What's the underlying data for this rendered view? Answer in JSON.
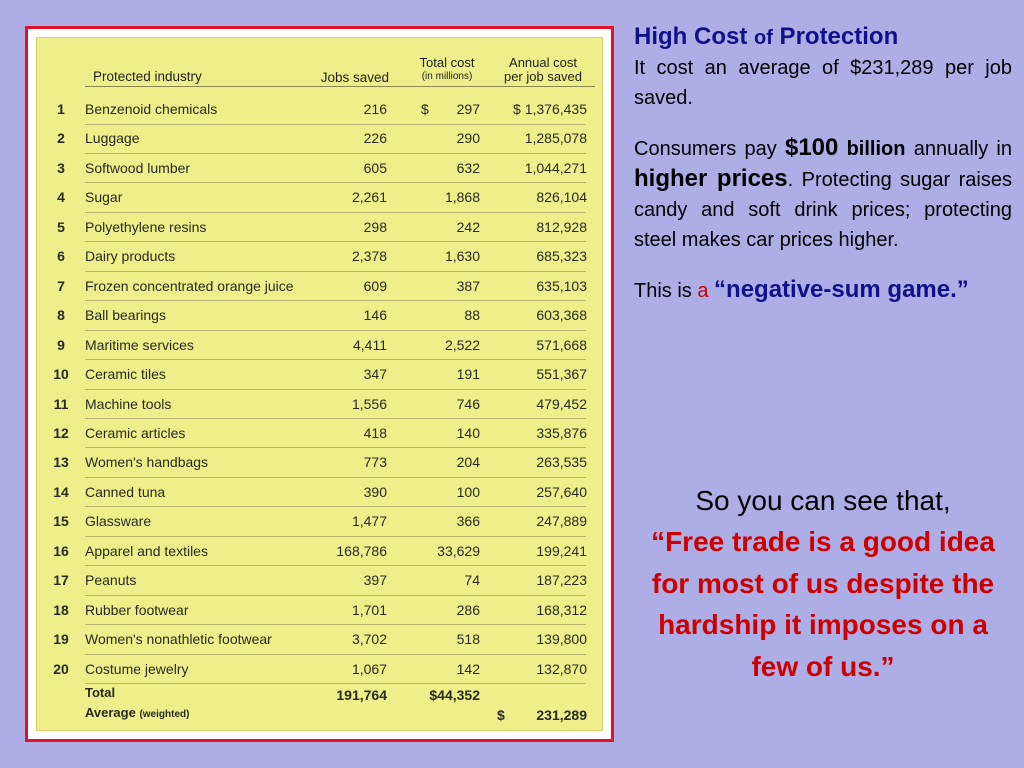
{
  "table": {
    "headers": {
      "industry": "Protected industry",
      "jobs": "Jobs saved",
      "total_cost_line1": "Total cost",
      "total_cost_line2": "(in millions)",
      "annual_cost_line1": "Annual cost",
      "annual_cost_line2": "per job saved"
    },
    "rows": [
      {
        "num": "1",
        "industry": "Benzenoid chemicals",
        "jobs": "216",
        "currency": "$",
        "total": "297",
        "annual": "$ 1,376,435"
      },
      {
        "num": "2",
        "industry": "Luggage",
        "jobs": "226",
        "currency": "",
        "total": "290",
        "annual": "1,285,078"
      },
      {
        "num": "3",
        "industry": "Softwood lumber",
        "jobs": "605",
        "currency": "",
        "total": "632",
        "annual": "1,044,271"
      },
      {
        "num": "4",
        "industry": "Sugar",
        "jobs": "2,261",
        "currency": "",
        "total": "1,868",
        "annual": "826,104"
      },
      {
        "num": "5",
        "industry": "Polyethylene resins",
        "jobs": "298",
        "currency": "",
        "total": "242",
        "annual": "812,928"
      },
      {
        "num": "6",
        "industry": "Dairy products",
        "jobs": "2,378",
        "currency": "",
        "total": "1,630",
        "annual": "685,323"
      },
      {
        "num": "7",
        "industry": "Frozen concentrated orange juice",
        "jobs": "609",
        "currency": "",
        "total": "387",
        "annual": "635,103"
      },
      {
        "num": "8",
        "industry": "Ball bearings",
        "jobs": "146",
        "currency": "",
        "total": "88",
        "annual": "603,368"
      },
      {
        "num": "9",
        "industry": "Maritime services",
        "jobs": "4,411",
        "currency": "",
        "total": "2,522",
        "annual": "571,668"
      },
      {
        "num": "10",
        "industry": "Ceramic tiles",
        "jobs": "347",
        "currency": "",
        "total": "191",
        "annual": "551,367"
      },
      {
        "num": "11",
        "industry": "Machine tools",
        "jobs": "1,556",
        "currency": "",
        "total": "746",
        "annual": "479,452"
      },
      {
        "num": "12",
        "industry": "Ceramic articles",
        "jobs": "418",
        "currency": "",
        "total": "140",
        "annual": "335,876"
      },
      {
        "num": "13",
        "industry": "Women's handbags",
        "jobs": "773",
        "currency": "",
        "total": "204",
        "annual": "263,535"
      },
      {
        "num": "14",
        "industry": "Canned tuna",
        "jobs": "390",
        "currency": "",
        "total": "100",
        "annual": "257,640"
      },
      {
        "num": "15",
        "industry": "Glassware",
        "jobs": "1,477",
        "currency": "",
        "total": "366",
        "annual": "247,889"
      },
      {
        "num": "16",
        "industry": "Apparel and textiles",
        "jobs": "168,786",
        "currency": "",
        "total": "33,629",
        "annual": "199,241"
      },
      {
        "num": "17",
        "industry": "Peanuts",
        "jobs": "397",
        "currency": "",
        "total": "74",
        "annual": "187,223"
      },
      {
        "num": "18",
        "industry": "Rubber footwear",
        "jobs": "1,701",
        "currency": "",
        "total": "286",
        "annual": "168,312"
      },
      {
        "num": "19",
        "industry": "Women's nonathletic footwear",
        "jobs": "3,702",
        "currency": "",
        "total": "518",
        "annual": "139,800"
      },
      {
        "num": "20",
        "industry": "Costume jewelry",
        "jobs": "1,067",
        "currency": "",
        "total": "142",
        "annual": "132,870"
      }
    ],
    "totals": {
      "total_label": "Total",
      "average_label": "Average",
      "weighted_label": "(weighted)",
      "jobs_total": "191,764",
      "cost_total": "$44,352",
      "average_currency": "$",
      "average_value": "231,289"
    }
  },
  "side": {
    "title_part1": "High Cost ",
    "title_of": "of",
    "title_part2": " Protection",
    "p1": "It cost an average of $231,289 per job saved.",
    "p2_pre": "Consumers pay ",
    "p2_amount": "$100",
    "p2_unit": " billion",
    "p2_mid": " annually in ",
    "p2_emph": "higher prices",
    "p2_post": ". Protecting sugar raises candy and soft drink prices; protecting steel makes car prices higher.",
    "p3_pre": "This is ",
    "p3_a": "a",
    "p3_quote": "“negative-sum game.”",
    "conclusion_lead": "So you can see that,",
    "conclusion_quote": "“Free trade is a good idea for most of us despite the hardship it imposes on a few of us.”"
  },
  "colors": {
    "background": "#aeaee6",
    "frame_border": "#e0122a",
    "table_paper": "#eeee8a",
    "title_blue": "#10108a",
    "quote_red": "#cc0000"
  }
}
